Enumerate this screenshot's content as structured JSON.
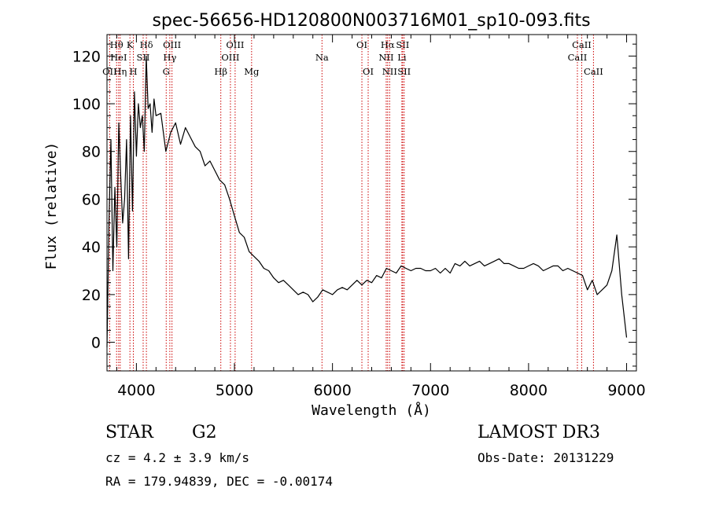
{
  "footer": {
    "object_class": "STAR",
    "subclass": "G2",
    "survey": "LAMOST DR3",
    "cz": "cz = 4.2 ± 3.9 km/s",
    "obs_date": "Obs-Date: 20131229",
    "coords": "RA = 179.94839, DEC =  -0.00174"
  },
  "chart_data": {
    "type": "line",
    "title": "spec-56656-HD120800N003716M01_sp10-093.fits",
    "xlabel": "Wavelength (Å)",
    "ylabel": "Flux (relative)",
    "xlim": [
      3700,
      9100
    ],
    "ylim": [
      -12,
      129
    ],
    "xticks": [
      4000,
      5000,
      6000,
      7000,
      8000,
      9000
    ],
    "yticks": [
      0,
      20,
      40,
      60,
      80,
      100,
      120
    ],
    "grid": false,
    "line_color": "#000000",
    "marker_color": "#cc0000",
    "series": [
      {
        "x": [
          3700,
          3720,
          3740,
          3760,
          3780,
          3800,
          3820,
          3840,
          3860,
          3880,
          3900,
          3920,
          3940,
          3960,
          3980,
          4000,
          4020,
          4040,
          4060,
          4080,
          4100,
          4120,
          4140,
          4160,
          4180,
          4200,
          4250,
          4300,
          4350,
          4400,
          4450,
          4500,
          4550,
          4600,
          4650,
          4700,
          4750,
          4800,
          4850,
          4900,
          4950,
          5000,
          5050,
          5100,
          5150,
          5200,
          5250,
          5300,
          5350,
          5400,
          5450,
          5500,
          5550,
          5600,
          5650,
          5700,
          5750,
          5800,
          5850,
          5900,
          5950,
          6000,
          6050,
          6100,
          6150,
          6200,
          6250,
          6300,
          6350,
          6400,
          6450,
          6500,
          6550,
          6600,
          6650,
          6700,
          6750,
          6800,
          6850,
          6900,
          6950,
          7000,
          7050,
          7100,
          7150,
          7200,
          7250,
          7300,
          7350,
          7400,
          7450,
          7500,
          7550,
          7600,
          7650,
          7700,
          7750,
          7800,
          7850,
          7900,
          7950,
          8000,
          8050,
          8100,
          8150,
          8200,
          8250,
          8300,
          8350,
          8400,
          8450,
          8500,
          8550,
          8600,
          8650,
          8700,
          8750,
          8800,
          8850,
          8900,
          8950,
          9000
        ],
        "y": [
          -2,
          50,
          85,
          30,
          65,
          40,
          92,
          70,
          50,
          60,
          85,
          35,
          95,
          55,
          105,
          78,
          100,
          90,
          95,
          80,
          120,
          98,
          100,
          88,
          102,
          95,
          96,
          80,
          88,
          92,
          83,
          90,
          86,
          82,
          80,
          74,
          76,
          72,
          68,
          66,
          60,
          53,
          46,
          44,
          38,
          36,
          34,
          31,
          30,
          27,
          25,
          26,
          24,
          22,
          20,
          21,
          20,
          17,
          19,
          22,
          21,
          20,
          22,
          23,
          22,
          24,
          26,
          24,
          26,
          25,
          28,
          27,
          31,
          30,
          29,
          32,
          31,
          30,
          31,
          31,
          30,
          30,
          31,
          29,
          31,
          29,
          33,
          32,
          34,
          32,
          33,
          34,
          32,
          33,
          34,
          35,
          33,
          33,
          32,
          31,
          31,
          32,
          33,
          32,
          30,
          31,
          32,
          32,
          30,
          31,
          30,
          29,
          28,
          22,
          26,
          20,
          22,
          24,
          30,
          45,
          20,
          2
        ]
      }
    ],
    "lines": [
      {
        "label": "Hθ",
        "x": 3798,
        "row": 0
      },
      {
        "label": "OII",
        "x": 3727,
        "row": 2
      },
      {
        "label": "HeI",
        "x": 3819,
        "row": 1
      },
      {
        "label": "Hη",
        "x": 3835,
        "row": 2
      },
      {
        "label": "K",
        "x": 3934,
        "row": 0
      },
      {
        "label": "SII",
        "x": 4069,
        "row": 1
      },
      {
        "label": "H",
        "x": 3969,
        "row": 2
      },
      {
        "label": "Hδ",
        "x": 4102,
        "row": 0
      },
      {
        "label": "OIII",
        "x": 4363,
        "row": 0
      },
      {
        "label": "Hγ",
        "x": 4341,
        "row": 1
      },
      {
        "label": "G",
        "x": 4304,
        "row": 2
      },
      {
        "label": "OIII",
        "x": 5007,
        "row": 0
      },
      {
        "label": "OIII",
        "x": 4959,
        "row": 1
      },
      {
        "label": "Hβ",
        "x": 4861,
        "row": 2
      },
      {
        "label": "Mg",
        "x": 5175,
        "row": 2
      },
      {
        "label": "Na",
        "x": 5893,
        "row": 1
      },
      {
        "label": "OI",
        "x": 6300,
        "row": 0
      },
      {
        "label": "OI",
        "x": 6364,
        "row": 2
      },
      {
        "label": "Hα",
        "x": 6563,
        "row": 0
      },
      {
        "label": "SII",
        "x": 6716,
        "row": 0
      },
      {
        "label": "NII",
        "x": 6548,
        "row": 1
      },
      {
        "label": "Li",
        "x": 6708,
        "row": 1
      },
      {
        "label": "NII",
        "x": 6583,
        "row": 2
      },
      {
        "label": "SII",
        "x": 6731,
        "row": 2
      },
      {
        "label": "CaII",
        "x": 8542,
        "row": 0
      },
      {
        "label": "CaII",
        "x": 8498,
        "row": 1
      },
      {
        "label": "CaII",
        "x": 8662,
        "row": 2
      }
    ]
  }
}
